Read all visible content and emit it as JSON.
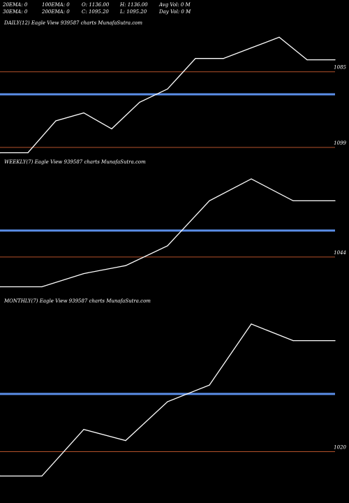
{
  "header": {
    "row1": [
      "20EMA: 0",
      "100EMA: 0",
      "O: 1136.00",
      "H: 1136.00",
      "Avg Vol: 0  M"
    ],
    "row2": [
      "30EMA: 0",
      "200EMA: 0",
      "C: 1095.20",
      "L: 1095.20",
      "Day Vol: 0  M"
    ]
  },
  "colors": {
    "background": "#000000",
    "line": "#ffffff",
    "ema": "#5b8ee8",
    "level": "#b5522b"
  },
  "chart_data": [
    {
      "type": "line",
      "label": "DAILY(12) Eagle   View  939587 charts MunafaSutra.com",
      "x": [
        1,
        2,
        3,
        4,
        5,
        6,
        7,
        8,
        9,
        10,
        11,
        12,
        13
      ],
      "values": [
        1036,
        1036,
        1060,
        1066,
        1054,
        1074,
        1084,
        1107,
        1107,
        1115,
        1123,
        1106,
        1106
      ],
      "ylim": [
        1030,
        1130
      ],
      "ema_value": 1080,
      "levels": [
        1097,
        1040
      ],
      "tick_labels": [
        "1085",
        "1099"
      ]
    },
    {
      "type": "line",
      "label": "WEEKLY(7) Eagle   View  939587 charts MunafaSutra.com",
      "x": [
        1,
        2,
        3,
        4,
        5,
        6,
        7,
        8,
        9
      ],
      "values": [
        1040,
        1040,
        1060,
        1072,
        1102,
        1170,
        1203,
        1170,
        1170
      ],
      "ylim": [
        1030,
        1220
      ],
      "ema_value": 1125,
      "levels": [
        1085
      ],
      "tick_labels": [
        "1044"
      ]
    },
    {
      "type": "line",
      "label": "MONTHLY(7) Eagle   View  939587 charts MunafaSutra.com",
      "x": [
        1,
        2,
        3,
        4,
        5,
        6,
        7,
        8,
        9
      ],
      "values": [
        1018,
        1018,
        1060,
        1050,
        1085,
        1100,
        1155,
        1140,
        1140
      ],
      "ylim": [
        1000,
        1170
      ],
      "ema_value": 1092,
      "levels": [
        1040
      ],
      "tick_labels": [
        "1020"
      ]
    }
  ]
}
